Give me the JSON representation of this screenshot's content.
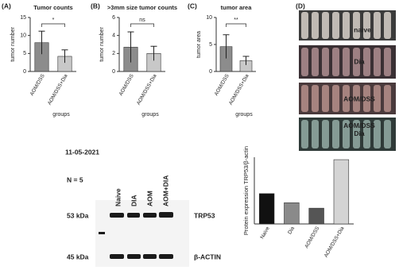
{
  "chart_data": [
    {
      "type": "bar",
      "panel_label": "(A)",
      "title": "Tumor counts",
      "ylabel": "tumor number",
      "xlabel": "groups",
      "categories": [
        "AOM/DSS",
        "AOM/DSS+Dia"
      ],
      "values": [
        8,
        4.2
      ],
      "errors": [
        3.2,
        1.8
      ],
      "colors": [
        "#8c8c8c",
        "#c8c8c8"
      ],
      "ylim": [
        0,
        15
      ],
      "yticks": [
        0,
        5,
        10,
        15
      ],
      "significance": "*"
    },
    {
      "type": "bar",
      "panel_label": "(B)",
      "title": ">3mm size tumor counts",
      "ylabel": "tumor number",
      "xlabel": "groups",
      "categories": [
        "AOM/DSS",
        "AOM/DSS+Dia"
      ],
      "values": [
        2.7,
        2.0
      ],
      "errors": [
        1.7,
        0.8
      ],
      "colors": [
        "#8c8c8c",
        "#c8c8c8"
      ],
      "ylim": [
        0,
        6
      ],
      "yticks": [
        0,
        2,
        4,
        6
      ],
      "significance": "ns"
    },
    {
      "type": "bar",
      "panel_label": "(C)",
      "title": "tumor area",
      "ylabel": "tumor area",
      "xlabel": "groups",
      "categories": [
        "AOM/DSS",
        "AOM/DSS+Dia"
      ],
      "values": [
        4.6,
        2.0
      ],
      "errors": [
        2.2,
        0.8
      ],
      "colors": [
        "#8c8c8c",
        "#c8c8c8"
      ],
      "ylim": [
        0,
        10
      ],
      "yticks": [
        0,
        5,
        10
      ],
      "significance": "**"
    },
    {
      "type": "bar",
      "ylabel": "Protein expression TRP53/β-actin",
      "categories": [
        "Naive",
        "Dia",
        "AOM/DSS",
        "AOM/DSS+Dia"
      ],
      "values": [
        1.0,
        0.7,
        0.52,
        2.12
      ],
      "colors": [
        "#111111",
        "#8a8a8a",
        "#555555",
        "#d4d4d4"
      ],
      "ylim": [
        0,
        2.2
      ]
    }
  ],
  "photo": {
    "panel_label": "(D)",
    "labels": [
      "naive",
      "Dia",
      "AOM/DSS",
      "AOM/DSS Dia"
    ]
  },
  "blot": {
    "date": "11-05-2021",
    "n": "N = 5",
    "lanes": [
      "Naive",
      "DIA",
      "AOM",
      "AOM+DIA"
    ],
    "rows": [
      {
        "size": "53 kDa",
        "protein": "TRP53"
      },
      {
        "size": "45 kDa",
        "protein": "β-ACTIN"
      }
    ]
  }
}
